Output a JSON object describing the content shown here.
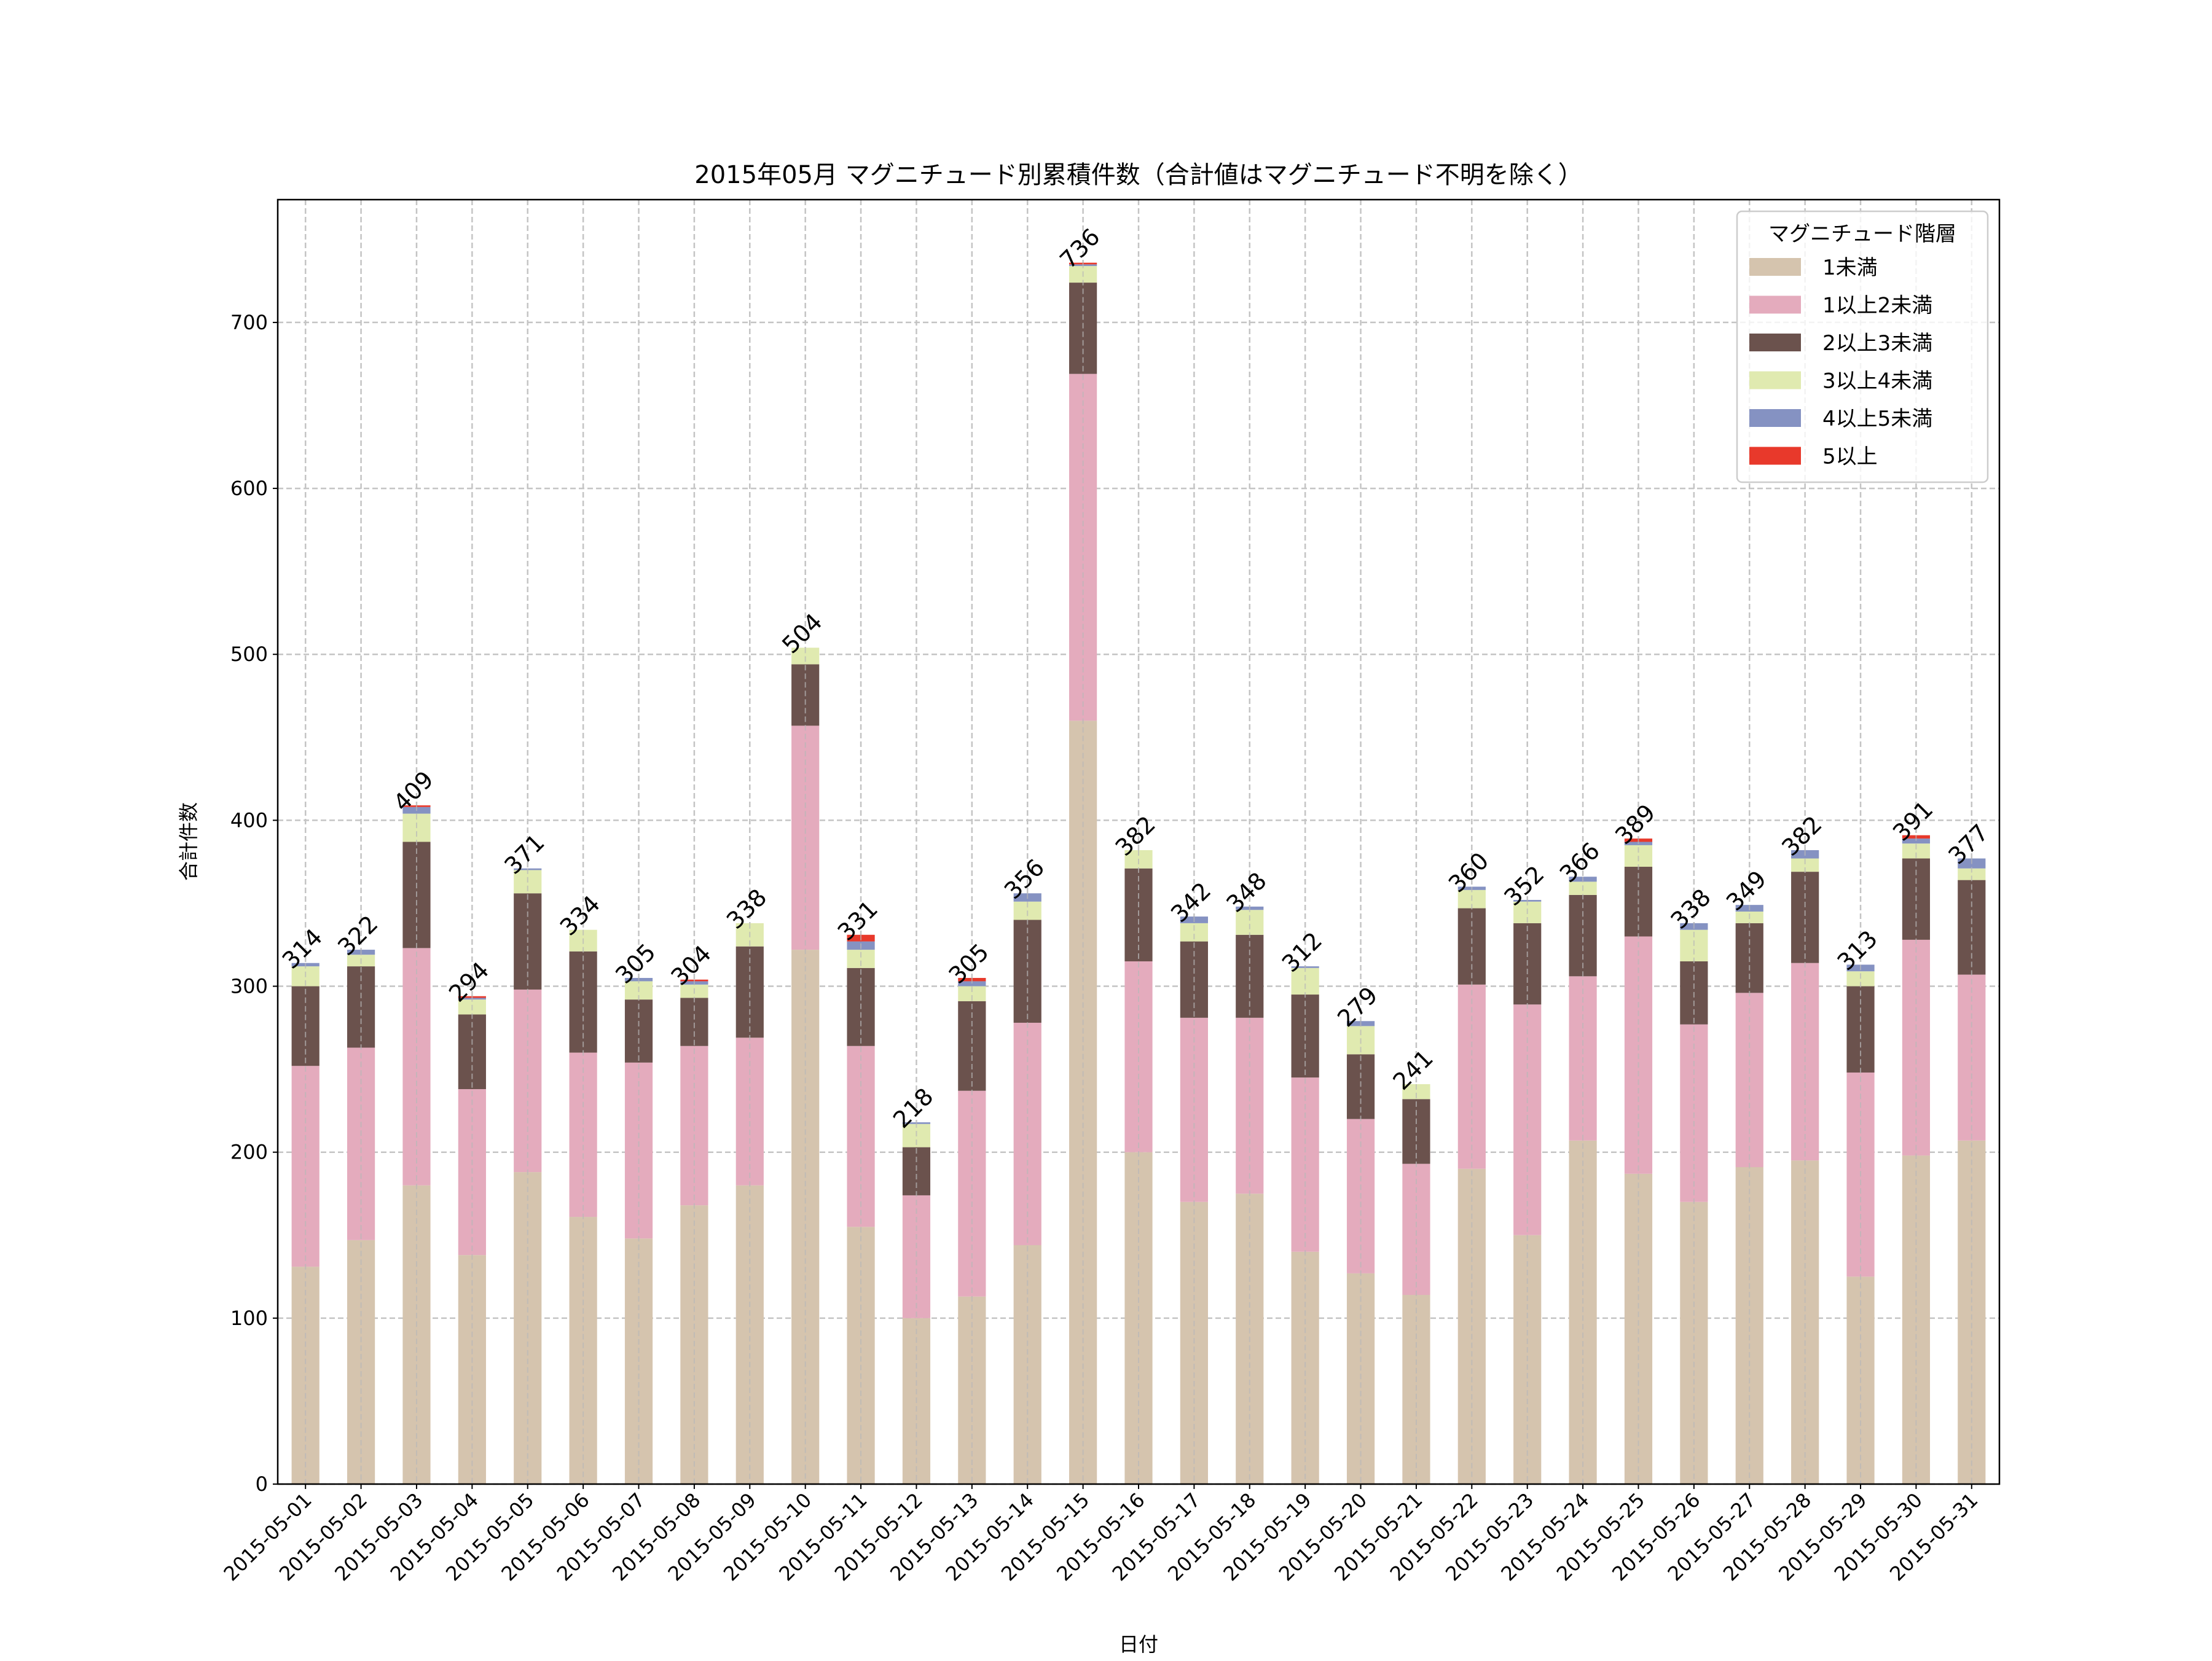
{
  "chart_data": {
    "type": "bar",
    "stacked": true,
    "title": "2015年05月 マグニチュード別累積件数（合計値はマグニチュード不明を除く）",
    "xlabel": "日付",
    "ylabel": "合計件数",
    "ylim": [
      0,
      774
    ],
    "yticks": [
      0,
      100,
      200,
      300,
      400,
      500,
      600,
      700
    ],
    "grid": true,
    "legend": {
      "title": "マグニチュード階層",
      "placement": "top-right"
    },
    "categories": [
      "2015-05-01",
      "2015-05-02",
      "2015-05-03",
      "2015-05-04",
      "2015-05-05",
      "2015-05-06",
      "2015-05-07",
      "2015-05-08",
      "2015-05-09",
      "2015-05-10",
      "2015-05-11",
      "2015-05-12",
      "2015-05-13",
      "2015-05-14",
      "2015-05-15",
      "2015-05-16",
      "2015-05-17",
      "2015-05-18",
      "2015-05-19",
      "2015-05-20",
      "2015-05-21",
      "2015-05-22",
      "2015-05-23",
      "2015-05-24",
      "2015-05-25",
      "2015-05-26",
      "2015-05-27",
      "2015-05-28",
      "2015-05-29",
      "2015-05-30",
      "2015-05-31"
    ],
    "totals": [
      314,
      322,
      409,
      294,
      371,
      334,
      305,
      304,
      338,
      504,
      331,
      218,
      305,
      356,
      736,
      382,
      342,
      348,
      312,
      279,
      241,
      360,
      352,
      366,
      389,
      338,
      349,
      382,
      313,
      391,
      377
    ],
    "series": [
      {
        "name": "1未満",
        "color": "#d5c4ae",
        "values": [
          131,
          147,
          180,
          138,
          188,
          161,
          148,
          168,
          180,
          322,
          155,
          100,
          113,
          144,
          460,
          200,
          170,
          175,
          140,
          127,
          114,
          190,
          150,
          207,
          187,
          170,
          191,
          195,
          125,
          198,
          207
        ]
      },
      {
        "name": "1以上2未満",
        "color": "#e4abbd",
        "values": [
          121,
          116,
          143,
          100,
          110,
          99,
          106,
          96,
          89,
          135,
          109,
          74,
          124,
          134,
          209,
          115,
          111,
          106,
          105,
          93,
          79,
          111,
          139,
          99,
          143,
          107,
          105,
          119,
          123,
          130,
          100
        ]
      },
      {
        "name": "2以上3未満",
        "color": "#6b524d",
        "values": [
          48,
          49,
          64,
          45,
          58,
          61,
          38,
          29,
          55,
          37,
          47,
          29,
          54,
          62,
          55,
          56,
          46,
          50,
          50,
          39,
          39,
          46,
          49,
          49,
          42,
          38,
          42,
          55,
          52,
          49,
          57
        ]
      },
      {
        "name": "3以上4未満",
        "color": "#e0eab0",
        "values": [
          12,
          7,
          17,
          9,
          14,
          13,
          11,
          8,
          14,
          10,
          11,
          14,
          9,
          11,
          10,
          11,
          11,
          15,
          16,
          17,
          9,
          11,
          13,
          8,
          13,
          19,
          7,
          8,
          9,
          9,
          7
        ]
      },
      {
        "name": "4以上5未満",
        "color": "#8592c2",
        "values": [
          2,
          3,
          4,
          1,
          1,
          0,
          2,
          2,
          0,
          0,
          5,
          1,
          3,
          5,
          1,
          0,
          4,
          2,
          1,
          3,
          0,
          2,
          1,
          3,
          2,
          4,
          4,
          5,
          4,
          3,
          6
        ]
      },
      {
        "name": "5以上",
        "color": "#e8392b",
        "values": [
          0,
          0,
          1,
          1,
          0,
          0,
          0,
          1,
          0,
          0,
          4,
          0,
          2,
          0,
          1,
          0,
          0,
          0,
          0,
          0,
          0,
          0,
          0,
          0,
          2,
          0,
          0,
          0,
          0,
          2,
          0
        ]
      }
    ]
  }
}
